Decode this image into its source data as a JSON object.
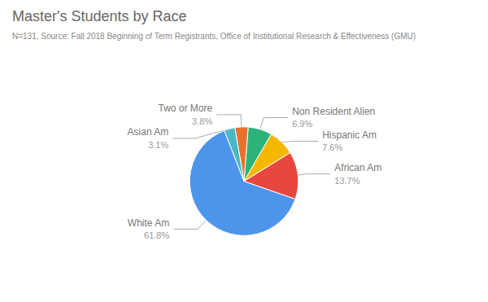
{
  "chart_data": {
    "type": "pie",
    "title": "Master's Students by Race",
    "subtitle": "N=131, Source: Fall 2018 Beginning of Term Registrants, Office of Institutional Research & Effectiveness (GMU)",
    "categories": [
      "White Am",
      "African Am",
      "Hispanic Am",
      "Non Resident Alien",
      "Two or More",
      "Asian Am"
    ],
    "values": [
      61.8,
      13.7,
      7.6,
      6.9,
      3.8,
      3.1
    ],
    "value_labels": [
      "61.8%",
      "13.7%",
      "7.6%",
      "6.9%",
      "3.8%",
      "3.1%"
    ],
    "colors": [
      "#4d94eb",
      "#e8473f",
      "#f5b800",
      "#2db37a",
      "#e8712e",
      "#4ab8c4"
    ],
    "data_labels": true,
    "legend": false
  }
}
